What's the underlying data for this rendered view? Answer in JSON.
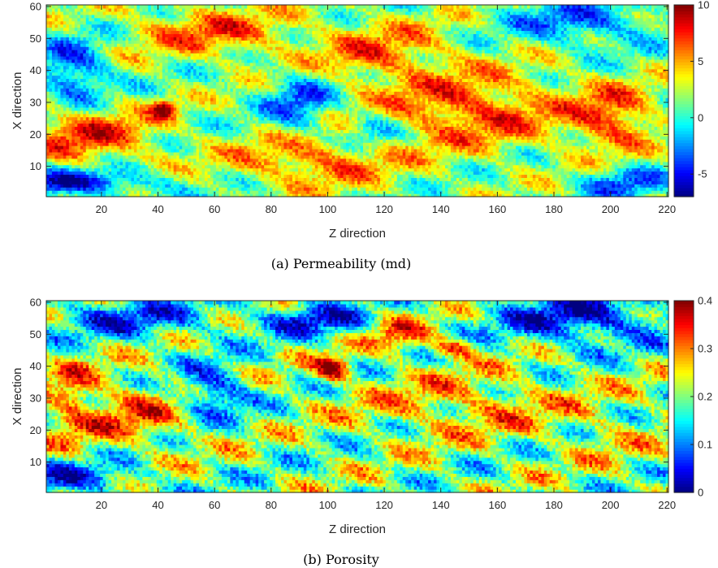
{
  "chart_data": [
    {
      "type": "heatmap",
      "caption": "(a) Permeability (md)",
      "xlabel": "Z direction",
      "ylabel": "X direction",
      "xlim": [
        1,
        220
      ],
      "ylim": [
        1,
        60
      ],
      "xticks": [
        20,
        40,
        60,
        80,
        100,
        120,
        140,
        160,
        180,
        200,
        220
      ],
      "yticks": [
        10,
        20,
        30,
        40,
        50,
        60
      ],
      "colorbar": {
        "min": -7,
        "max": 10,
        "ticks": [
          -5,
          0,
          5,
          10
        ],
        "colormap": "jet"
      },
      "grid": false,
      "field": {
        "background": 1.5,
        "blobs": [
          {
            "x": 42,
            "y": 28,
            "rx": 4,
            "ry": 3,
            "v": 10
          },
          {
            "x": 15,
            "y": 20,
            "rx": 25,
            "ry": 9,
            "v": 7
          },
          {
            "x": 95,
            "y": 12,
            "rx": 30,
            "ry": 8,
            "v": 6.5
          },
          {
            "x": 150,
            "y": 28,
            "rx": 35,
            "ry": 12,
            "v": 7
          },
          {
            "x": 60,
            "y": 52,
            "rx": 30,
            "ry": 8,
            "v": 6
          },
          {
            "x": 200,
            "y": 25,
            "rx": 15,
            "ry": 10,
            "v": 7.5
          },
          {
            "x": 120,
            "y": 45,
            "rx": 25,
            "ry": 10,
            "v": 6
          },
          {
            "x": 10,
            "y": 40,
            "rx": 12,
            "ry": 10,
            "v": -4
          },
          {
            "x": 10,
            "y": 5,
            "rx": 30,
            "ry": 4,
            "v": -5
          },
          {
            "x": 90,
            "y": 30,
            "rx": 12,
            "ry": 9,
            "v": -3
          },
          {
            "x": 190,
            "y": 55,
            "rx": 25,
            "ry": 7,
            "v": -3
          },
          {
            "x": 205,
            "y": 5,
            "rx": 15,
            "ry": 5,
            "v": -3
          },
          {
            "x": 115,
            "y": 22,
            "rx": 10,
            "ry": 6,
            "v": 0
          }
        ],
        "noise": 2.8,
        "seed": 11
      }
    },
    {
      "type": "heatmap",
      "caption": "(b) Porosity",
      "xlabel": "Z direction",
      "ylabel": "X direction",
      "xlim": [
        1,
        220
      ],
      "ylim": [
        1,
        60
      ],
      "xticks": [
        20,
        40,
        60,
        80,
        100,
        120,
        140,
        160,
        180,
        200,
        220
      ],
      "yticks": [
        10,
        20,
        30,
        40,
        50,
        60
      ],
      "colorbar": {
        "min": 0,
        "max": 0.4,
        "ticks": [
          0,
          0.1,
          0.2,
          0.3,
          0.4
        ],
        "colormap": "jet"
      },
      "grid": false,
      "field": {
        "background": 0.2,
        "blobs": [
          {
            "x": 102,
            "y": 39,
            "rx": 6,
            "ry": 4,
            "v": 0.4
          },
          {
            "x": 145,
            "y": 46,
            "rx": 8,
            "ry": 3,
            "v": 0.35
          },
          {
            "x": 30,
            "y": 25,
            "rx": 25,
            "ry": 10,
            "v": 0.3
          },
          {
            "x": 150,
            "y": 28,
            "rx": 40,
            "ry": 10,
            "v": 0.28
          },
          {
            "x": 10,
            "y": 30,
            "rx": 8,
            "ry": 12,
            "v": 0.32
          },
          {
            "x": 60,
            "y": 32,
            "rx": 12,
            "ry": 8,
            "v": 0.06
          },
          {
            "x": 10,
            "y": 5,
            "rx": 25,
            "ry": 5,
            "v": 0.08
          },
          {
            "x": 190,
            "y": 55,
            "rx": 30,
            "ry": 8,
            "v": 0.04
          },
          {
            "x": 30,
            "y": 55,
            "rx": 30,
            "ry": 6,
            "v": 0.08
          },
          {
            "x": 95,
            "y": 55,
            "rx": 20,
            "ry": 5,
            "v": 0.06
          },
          {
            "x": 125,
            "y": 50,
            "rx": 10,
            "ry": 6,
            "v": 0.3
          },
          {
            "x": 200,
            "y": 18,
            "rx": 18,
            "ry": 10,
            "v": 0.24
          }
        ],
        "noise": 0.09,
        "seed": 23
      }
    }
  ]
}
